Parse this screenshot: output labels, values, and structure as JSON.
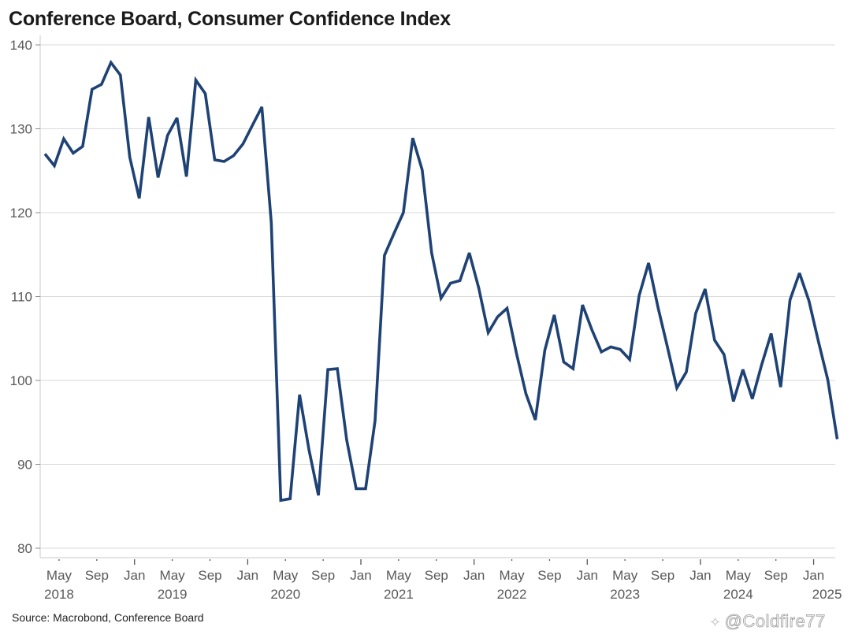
{
  "chart_data": {
    "type": "line",
    "title": "Conference Board, Consumer Confidence Index",
    "xlabel": "",
    "ylabel": "",
    "ylim": [
      80,
      140
    ],
    "yticks": [
      80,
      90,
      100,
      110,
      120,
      130,
      140
    ],
    "grid": "horizontal",
    "legend": "none",
    "x_start": "2018-04",
    "x_end": "2025-03",
    "frequency": "monthly",
    "xticks": [
      {
        "date": "2018-05",
        "label": "May",
        "year_label": "2018"
      },
      {
        "date": "2018-09",
        "label": "Sep",
        "year_label": ""
      },
      {
        "date": "2019-01",
        "label": "Jan",
        "year_label": ""
      },
      {
        "date": "2019-05",
        "label": "May",
        "year_label": "2019"
      },
      {
        "date": "2019-09",
        "label": "Sep",
        "year_label": ""
      },
      {
        "date": "2020-01",
        "label": "Jan",
        "year_label": ""
      },
      {
        "date": "2020-05",
        "label": "May",
        "year_label": "2020"
      },
      {
        "date": "2020-09",
        "label": "Sep",
        "year_label": ""
      },
      {
        "date": "2021-01",
        "label": "Jan",
        "year_label": ""
      },
      {
        "date": "2021-05",
        "label": "May",
        "year_label": "2021"
      },
      {
        "date": "2021-09",
        "label": "Sep",
        "year_label": ""
      },
      {
        "date": "2022-01",
        "label": "Jan",
        "year_label": ""
      },
      {
        "date": "2022-05",
        "label": "May",
        "year_label": "2022"
      },
      {
        "date": "2022-09",
        "label": "Sep",
        "year_label": ""
      },
      {
        "date": "2023-01",
        "label": "Jan",
        "year_label": ""
      },
      {
        "date": "2023-05",
        "label": "May",
        "year_label": "2023"
      },
      {
        "date": "2023-09",
        "label": "Sep",
        "year_label": ""
      },
      {
        "date": "2024-01",
        "label": "Jan",
        "year_label": ""
      },
      {
        "date": "2024-05",
        "label": "May",
        "year_label": "2024"
      },
      {
        "date": "2024-09",
        "label": "Sep",
        "year_label": ""
      },
      {
        "date": "2025-01",
        "label": "Jan",
        "year_label": "2025"
      }
    ],
    "series": [
      {
        "name": "Consumer Confidence Index",
        "color": "#1f4275",
        "values": [
          127.0,
          125.6,
          128.8,
          127.1,
          127.9,
          134.7,
          135.3,
          137.9,
          136.4,
          126.6,
          121.7,
          131.4,
          124.2,
          129.2,
          131.3,
          124.3,
          135.8,
          134.2,
          126.3,
          126.1,
          126.8,
          128.2,
          130.4,
          132.6,
          118.8,
          85.7,
          85.9,
          98.3,
          91.7,
          86.3,
          101.3,
          101.4,
          92.9,
          87.1,
          87.1,
          95.2,
          114.9,
          117.5,
          120.0,
          128.9,
          125.1,
          115.2,
          109.8,
          111.6,
          111.9,
          115.2,
          111.0,
          105.7,
          107.6,
          108.6,
          103.2,
          98.4,
          95.3,
          103.6,
          107.8,
          102.2,
          101.4,
          109.0,
          106.0,
          103.4,
          104.0,
          103.7,
          102.5,
          110.1,
          114.0,
          108.7,
          104.0,
          99.1,
          101.0,
          108.0,
          110.9,
          104.8,
          103.1,
          97.5,
          101.3,
          97.8,
          101.9,
          105.6,
          99.2,
          109.6,
          112.8,
          109.5,
          104.7,
          100.1,
          93.0
        ]
      }
    ]
  },
  "footer": {
    "source": "Source: Macrobond, Conference Board",
    "watermark": "@Coldfire77"
  }
}
